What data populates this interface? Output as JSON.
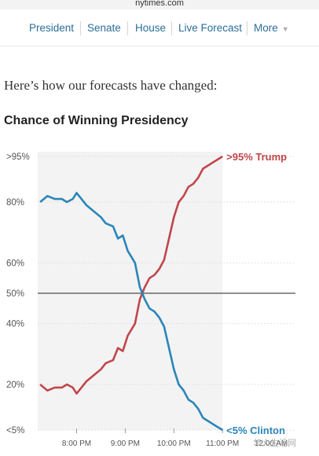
{
  "browser": {
    "url": "nytimes.com"
  },
  "nav": {
    "items": [
      {
        "label": "President"
      },
      {
        "label": "Senate"
      },
      {
        "label": "House"
      },
      {
        "label": "Live Forecast"
      },
      {
        "label": "More"
      }
    ],
    "chevron": "▼"
  },
  "intro": "Here’s how our forecasts have changed:",
  "colors": {
    "trump": "#c0464b",
    "clinton": "#2a85b8",
    "nav_link": "#2c6e98",
    "shade": "#f3f3f3"
  },
  "chart_data": {
    "type": "line",
    "title": "Chance of Winning Presidency",
    "xlabel": "",
    "ylabel": "",
    "x_ticks": [
      "8:00 PM",
      "9:00 PM",
      "10:00 PM",
      "11:00 PM",
      "12:00 AM"
    ],
    "y_ticks": [
      {
        "value": 95,
        "label": ">95%"
      },
      {
        "value": 80,
        "label": "80%"
      },
      {
        "value": 60,
        "label": "60%"
      },
      {
        "value": 50,
        "label": "50%"
      },
      {
        "value": 40,
        "label": "40%"
      },
      {
        "value": 20,
        "label": "20%"
      },
      {
        "value": 5,
        "label": "<5%"
      }
    ],
    "ylim": [
      5,
      95
    ],
    "xlim_hours": [
      19.2,
      24.5
    ],
    "shaded_until_hours": 23.0,
    "reference_line": 50,
    "series": [
      {
        "name": "Trump",
        "end_label": ">95% Trump",
        "x": [
          19.25,
          19.4,
          19.55,
          19.7,
          19.8,
          19.92,
          20.0,
          20.1,
          20.2,
          20.35,
          20.5,
          20.6,
          20.75,
          20.85,
          20.95,
          21.05,
          21.2,
          21.3,
          21.4,
          21.5,
          21.6,
          21.7,
          21.8,
          21.9,
          22.0,
          22.1,
          22.2,
          22.3,
          22.4,
          22.5,
          22.6,
          22.7,
          22.8,
          22.9,
          23.0
        ],
        "values": [
          20,
          18,
          19,
          19,
          20,
          19,
          17,
          19,
          21,
          23,
          25,
          27,
          28,
          32,
          31,
          36,
          40,
          48,
          52,
          55,
          56,
          58,
          61,
          68,
          75,
          80,
          82,
          85,
          86,
          88,
          91,
          92,
          93,
          94,
          95
        ]
      },
      {
        "name": "Clinton",
        "end_label": "<5% Clinton",
        "x": [
          19.25,
          19.4,
          19.55,
          19.7,
          19.8,
          19.92,
          20.0,
          20.1,
          20.2,
          20.35,
          20.5,
          20.6,
          20.75,
          20.85,
          20.95,
          21.05,
          21.2,
          21.3,
          21.4,
          21.5,
          21.6,
          21.7,
          21.8,
          21.9,
          22.0,
          22.1,
          22.2,
          22.3,
          22.4,
          22.5,
          22.6,
          22.7,
          22.8,
          22.9,
          23.0
        ],
        "values": [
          80,
          82,
          81,
          81,
          80,
          81,
          83,
          81,
          79,
          77,
          75,
          73,
          72,
          68,
          69,
          64,
          60,
          52,
          48,
          45,
          44,
          42,
          39,
          32,
          25,
          20,
          18,
          15,
          14,
          12,
          9,
          8,
          7,
          6,
          5
        ]
      }
    ]
  },
  "watermark": "华人生活网"
}
